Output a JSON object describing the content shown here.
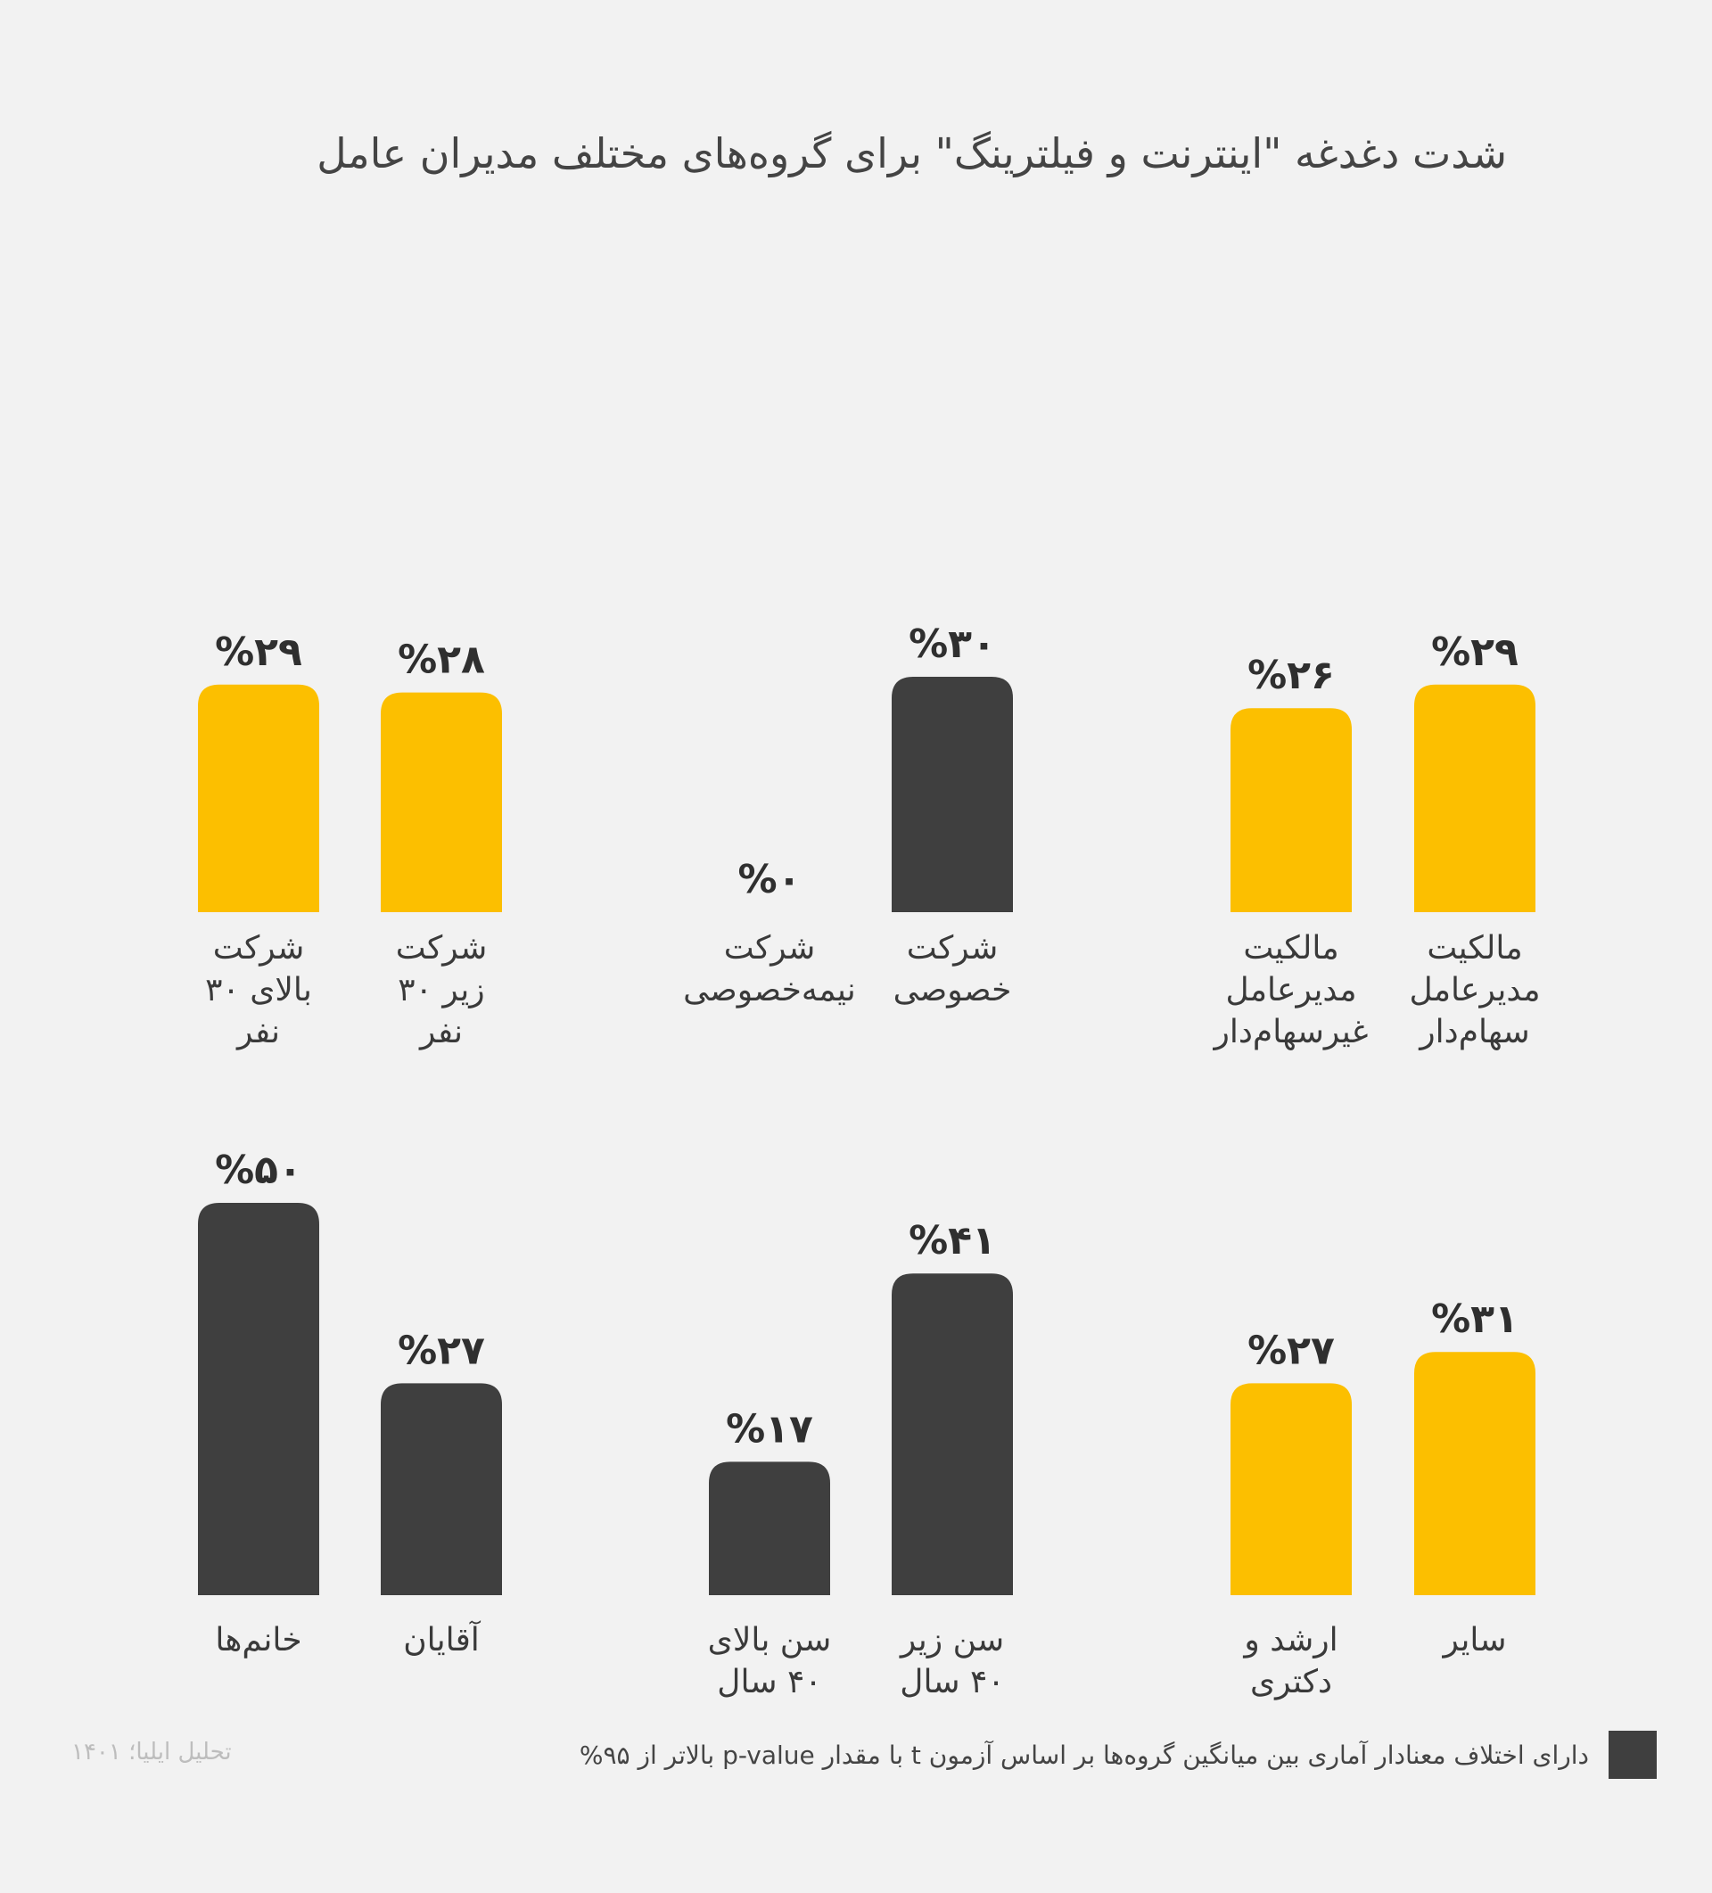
{
  "chart_data": {
    "type": "bar",
    "title": "شدت دغدغه \"اینترنت و فیلترینگ\" برای گروه‌های مختلف مدیران عامل",
    "colors": {
      "not_significant": "#fcbf00",
      "significant": "#3f3f3f",
      "background": "#f2f2f2"
    },
    "groups": [
      {
        "categories": [
          "مالکیت\nمدیرعامل\nسهام‌دار",
          "مالکیت\nمدیرعامل\nغیرسهام‌دار"
        ],
        "values": [
          29,
          26
        ],
        "value_labels": [
          "%۲۹",
          "%۲۶"
        ],
        "significant": [
          false,
          false
        ]
      },
      {
        "categories": [
          "شرکت\nخصوصی",
          "شرکت\nنیمه‌خصوصی"
        ],
        "values": [
          30,
          0
        ],
        "value_labels": [
          "%۳۰",
          "%۰"
        ],
        "significant": [
          true,
          true
        ]
      },
      {
        "categories": [
          "شرکت\nزیر ۳۰\nنفر",
          "شرکت\nبالای ۳۰\nنفر"
        ],
        "values": [
          28,
          29
        ],
        "value_labels": [
          "%۲۸",
          "%۲۹"
        ],
        "significant": [
          false,
          false
        ]
      },
      {
        "categories": [
          "سایر",
          "ارشد و\nدکتری"
        ],
        "values": [
          31,
          27
        ],
        "value_labels": [
          "%۳۱",
          "%۲۷"
        ],
        "significant": [
          false,
          false
        ]
      },
      {
        "categories": [
          "سن زیر\n۴۰ سال",
          "سن بالای\n۴۰ سال"
        ],
        "values": [
          41,
          17
        ],
        "value_labels": [
          "%۴۱",
          "%۱۷"
        ],
        "significant": [
          true,
          true
        ]
      },
      {
        "categories": [
          "آقایان",
          "خانم‌ها"
        ],
        "values": [
          27,
          50
        ],
        "value_labels": [
          "%۲۷",
          "%۵۰"
        ],
        "significant": [
          true,
          true
        ]
      }
    ]
  },
  "legend": {
    "text": "دارای اختلاف معنادار آماری بین میانگین گروه‌ها بر اساس آزمون t با مقدار p-value بالاتر از ۹۵%",
    "color": "#3f3f3f"
  },
  "source": "تحلیل ایلیا؛ ۱۴۰۱"
}
